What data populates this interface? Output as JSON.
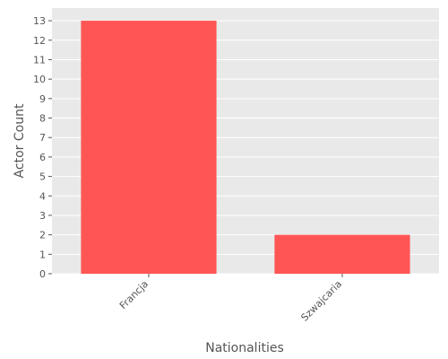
{
  "chart_data": {
    "type": "bar",
    "title": "",
    "xlabel": "Nationalities",
    "ylabel": "Actor Count",
    "categories": [
      "Francja",
      "Szwajcaria"
    ],
    "values": [
      13,
      2
    ],
    "ylim": [
      0,
      13.65
    ],
    "yticks": [
      0,
      1,
      2,
      3,
      4,
      5,
      6,
      7,
      8,
      9,
      10,
      11,
      12,
      13
    ],
    "grid": true,
    "legend": "none",
    "bar_color": "#ff5555",
    "background_color": "#e9e9e9",
    "grid_color": "#ffffff"
  }
}
